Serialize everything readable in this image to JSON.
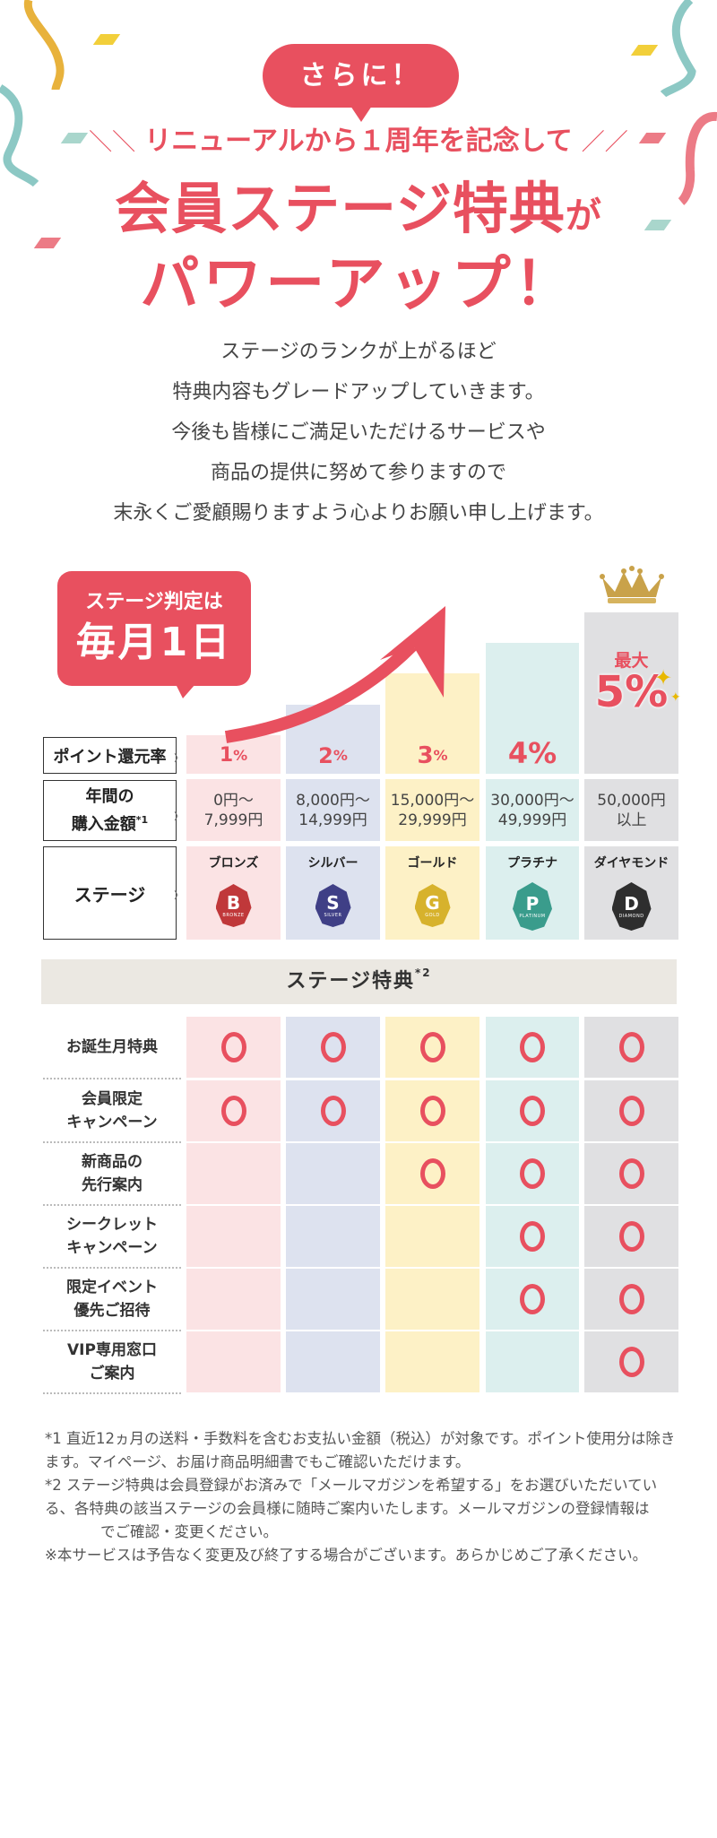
{
  "hero": {
    "bubble_label": "さらに！",
    "subheadline": "リニューアルから１周年を記念して",
    "subheadline_left_deco": "＼＼",
    "subheadline_right_deco": "／／",
    "headline_main": "会員ステージ特典",
    "headline_particle": "が",
    "headline_line2": "パワーアップ！"
  },
  "intro": {
    "lines": [
      "ステージのランクが上がるほど",
      "特典内容もグレードアップしていきます。",
      "今後も皆様にご満足いただけるサービスや",
      "商品の提供に努めて参りますので",
      "末永くご愛顧賜りますよう心よりお願い申し上げます。"
    ]
  },
  "judgement_bubble": {
    "line1": "ステージ判定は",
    "line2": "毎月1日"
  },
  "max_badge": {
    "label": "最大",
    "value": "5%"
  },
  "colors": {
    "accent": "#e8505f",
    "bronze_bg": "#fbe3e4",
    "silver_bg": "#dde2ef",
    "gold_bg": "#fdf1c6",
    "platinum_bg": "#dcefee",
    "diamond_bg": "#e0e0e2",
    "benefit_header_bg": "#ebe8e2"
  },
  "stage_table": {
    "row_labels": {
      "rate": "ポイント還元率",
      "amount_line1": "年間の",
      "amount_line2": "購入金額",
      "amount_note": "*1",
      "stage": "ステージ"
    },
    "stages": [
      {
        "name": "ブロンズ",
        "letter": "B",
        "word": "BRONZE",
        "rate_num": "1",
        "rate_unit": "%",
        "range_line1": "0円～",
        "range_line2": "7,999円"
      },
      {
        "name": "シルバー",
        "letter": "S",
        "word": "SILVER",
        "rate_num": "2",
        "rate_unit": "%",
        "range_line1": "8,000円～",
        "range_line2": "14,999円"
      },
      {
        "name": "ゴールド",
        "letter": "G",
        "word": "GOLD",
        "rate_num": "3",
        "rate_unit": "%",
        "range_line1": "15,000円～",
        "range_line2": "29,999円"
      },
      {
        "name": "プラチナ",
        "letter": "P",
        "word": "PLATINUM",
        "rate_num": "4",
        "rate_unit": "%",
        "range_line1": "30,000円～",
        "range_line2": "49,999円"
      },
      {
        "name": "ダイヤモンド",
        "letter": "D",
        "word": "DIAMOND",
        "rate_num": "",
        "rate_unit": "",
        "range_line1": "50,000円",
        "range_line2": "以上"
      }
    ]
  },
  "benefits": {
    "title": "ステージ特典",
    "title_note": "*2",
    "rows": [
      {
        "line1": "お誕生月特典",
        "line2": "",
        "available": [
          true,
          true,
          true,
          true,
          true
        ]
      },
      {
        "line1": "会員限定",
        "line2": "キャンペーン",
        "available": [
          true,
          true,
          true,
          true,
          true
        ]
      },
      {
        "line1": "新商品の",
        "line2": "先行案内",
        "available": [
          false,
          false,
          true,
          true,
          true
        ]
      },
      {
        "line1": "シークレット",
        "line2": "キャンペーン",
        "available": [
          false,
          false,
          false,
          true,
          true
        ]
      },
      {
        "line1": "限定イベント",
        "line2": "優先ご招待",
        "available": [
          false,
          false,
          false,
          true,
          true
        ]
      },
      {
        "line1": "VIP専用窓口",
        "line2": "ご案内",
        "available": [
          false,
          false,
          false,
          false,
          true
        ]
      }
    ]
  },
  "notes": {
    "note1": "*1 直近12ヵ月の送料・手数料を含むお支払い金額（税込）が対象です。ポイント使用分は除きます。マイページ、お届け商品明細書でもご確認いただけます。",
    "note2_before": "*2 ステージ特典は会員登録がお済みで「メールマガジンを希望する」をお選びいただいている、各特典の該当ステージの会員様に随時ご案内いたします。メールマガジンの登録情報は",
    "note2_after": "でご確認・変更ください。",
    "note3": "※本サービスは予告なく変更及び終了する場合がございます。あらかじめご了承ください。"
  }
}
